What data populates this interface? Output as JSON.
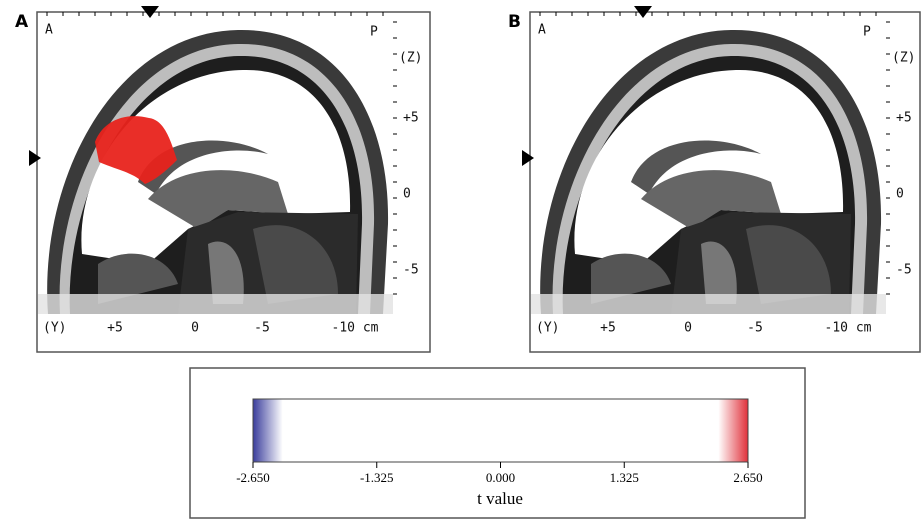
{
  "panels": [
    {
      "letter": "A",
      "anterior": "A",
      "posterior": "P",
      "z_axis": "(Z)",
      "z_labels": [
        "+5",
        "0",
        "-5"
      ],
      "y_axis": "(Y)",
      "y_labels": [
        "+5",
        "0",
        "-5",
        "-10 cm"
      ]
    },
    {
      "letter": "B",
      "anterior": "A",
      "posterior": "P",
      "z_axis": "(Z)",
      "z_labels": [
        "+5",
        "0",
        "-5"
      ],
      "y_axis": "(Y)",
      "y_labels": [
        "+5",
        "0",
        "-5",
        "-10 cm"
      ]
    }
  ],
  "colorbar": {
    "ticks": [
      {
        "value": -2.65,
        "label": "-2.650"
      },
      {
        "value": -1.325,
        "label": "-1.325"
      },
      {
        "value": 0,
        "label": "0.000"
      },
      {
        "value": 1.325,
        "label": "1.325"
      },
      {
        "value": 2.65,
        "label": "2.650"
      }
    ],
    "label": "t value"
  }
}
